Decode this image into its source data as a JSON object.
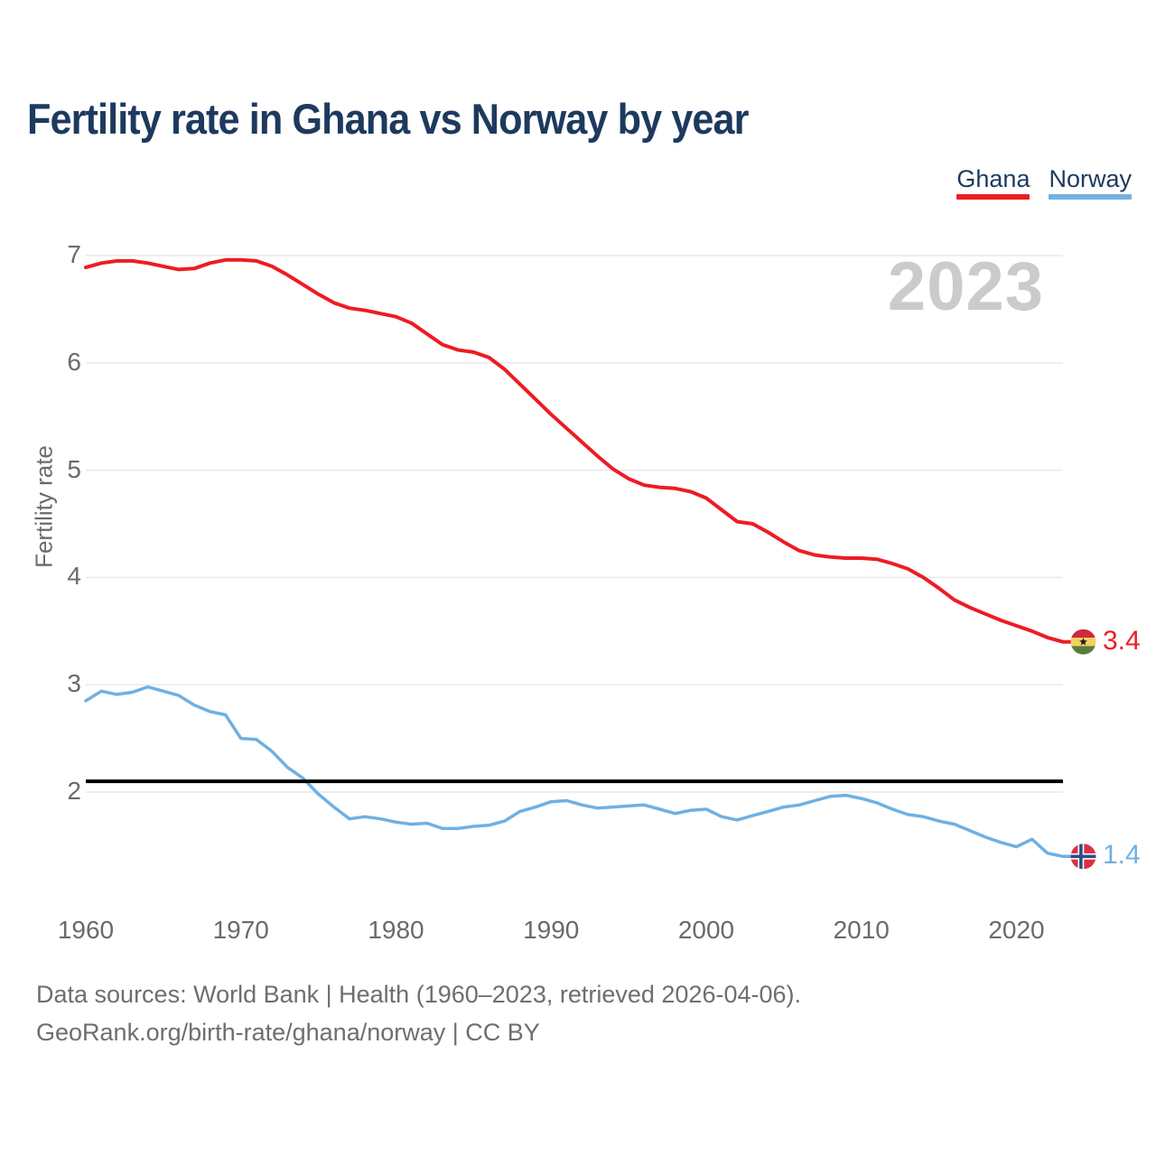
{
  "title": "Fertility rate in Ghana vs Norway by year",
  "watermark": "2023",
  "legend": [
    {
      "label": "Ghana",
      "color": "#ed1c24"
    },
    {
      "label": "Norway",
      "color": "#74b2e2"
    }
  ],
  "y_axis": {
    "label": "Fertility rate",
    "ticks": [
      7,
      6,
      5,
      4,
      3,
      2
    ]
  },
  "x_axis": {
    "ticks": [
      1960,
      1970,
      1980,
      1990,
      2000,
      2010,
      2020
    ]
  },
  "reference_line": {
    "value": 2.1,
    "color": "#000000"
  },
  "end_labels": [
    {
      "series": "Ghana",
      "value": "3.4",
      "flag": "ghana-flag"
    },
    {
      "series": "Norway",
      "value": "1.4",
      "flag": "norway-flag"
    }
  ],
  "footer": {
    "line1": "Data sources: World Bank | Health (1960–2023, retrieved 2026-04-06).",
    "line2": "GeoRank.org/birth-rate/ghana/norway | CC BY"
  },
  "chart_data": {
    "type": "line",
    "title": "Fertility rate in Ghana vs Norway by year",
    "xlabel": "",
    "ylabel": "Fertility rate",
    "xlim": [
      1960,
      2023
    ],
    "ylim": [
      1.2,
      7.3
    ],
    "grid": "horizontal",
    "legend_position": "top-right",
    "x": [
      1960,
      1961,
      1962,
      1963,
      1964,
      1965,
      1966,
      1967,
      1968,
      1969,
      1970,
      1971,
      1972,
      1973,
      1974,
      1975,
      1976,
      1977,
      1978,
      1979,
      1980,
      1981,
      1982,
      1983,
      1984,
      1985,
      1986,
      1987,
      1988,
      1989,
      1990,
      1991,
      1992,
      1993,
      1994,
      1995,
      1996,
      1997,
      1998,
      1999,
      2000,
      2001,
      2002,
      2003,
      2004,
      2005,
      2006,
      2007,
      2008,
      2009,
      2010,
      2011,
      2012,
      2013,
      2014,
      2015,
      2016,
      2017,
      2018,
      2019,
      2020,
      2021,
      2022,
      2023
    ],
    "series": [
      {
        "name": "Ghana",
        "color": "#ed1c24",
        "values": [
          6.89,
          6.93,
          6.95,
          6.95,
          6.93,
          6.9,
          6.87,
          6.88,
          6.93,
          6.96,
          6.96,
          6.95,
          6.9,
          6.82,
          6.73,
          6.64,
          6.56,
          6.51,
          6.49,
          6.46,
          6.43,
          6.37,
          6.27,
          6.17,
          6.12,
          6.1,
          6.05,
          5.94,
          5.8,
          5.66,
          5.52,
          5.39,
          5.26,
          5.13,
          5.01,
          4.92,
          4.86,
          4.84,
          4.83,
          4.8,
          4.74,
          4.63,
          4.52,
          4.5,
          4.42,
          4.33,
          4.25,
          4.21,
          4.19,
          4.18,
          4.18,
          4.17,
          4.13,
          4.08,
          4.0,
          3.9,
          3.79,
          3.72,
          3.66,
          3.6,
          3.55,
          3.5,
          3.44,
          3.4
        ]
      },
      {
        "name": "Norway",
        "color": "#6fb0e2",
        "values": [
          2.85,
          2.94,
          2.91,
          2.93,
          2.98,
          2.94,
          2.9,
          2.81,
          2.75,
          2.72,
          2.5,
          2.49,
          2.38,
          2.23,
          2.13,
          1.98,
          1.86,
          1.75,
          1.77,
          1.75,
          1.72,
          1.7,
          1.71,
          1.66,
          1.66,
          1.68,
          1.69,
          1.73,
          1.82,
          1.86,
          1.91,
          1.92,
          1.88,
          1.85,
          1.86,
          1.87,
          1.88,
          1.84,
          1.8,
          1.83,
          1.84,
          1.77,
          1.74,
          1.78,
          1.82,
          1.86,
          1.88,
          1.92,
          1.96,
          1.97,
          1.94,
          1.9,
          1.84,
          1.79,
          1.77,
          1.73,
          1.7,
          1.64,
          1.58,
          1.53,
          1.49,
          1.56,
          1.43,
          1.4
        ]
      }
    ],
    "annotations": {
      "replacement_line_value": 2.1,
      "watermark": "2023",
      "ghana_end_label": "3.4",
      "norway_end_label": "1.4"
    }
  }
}
